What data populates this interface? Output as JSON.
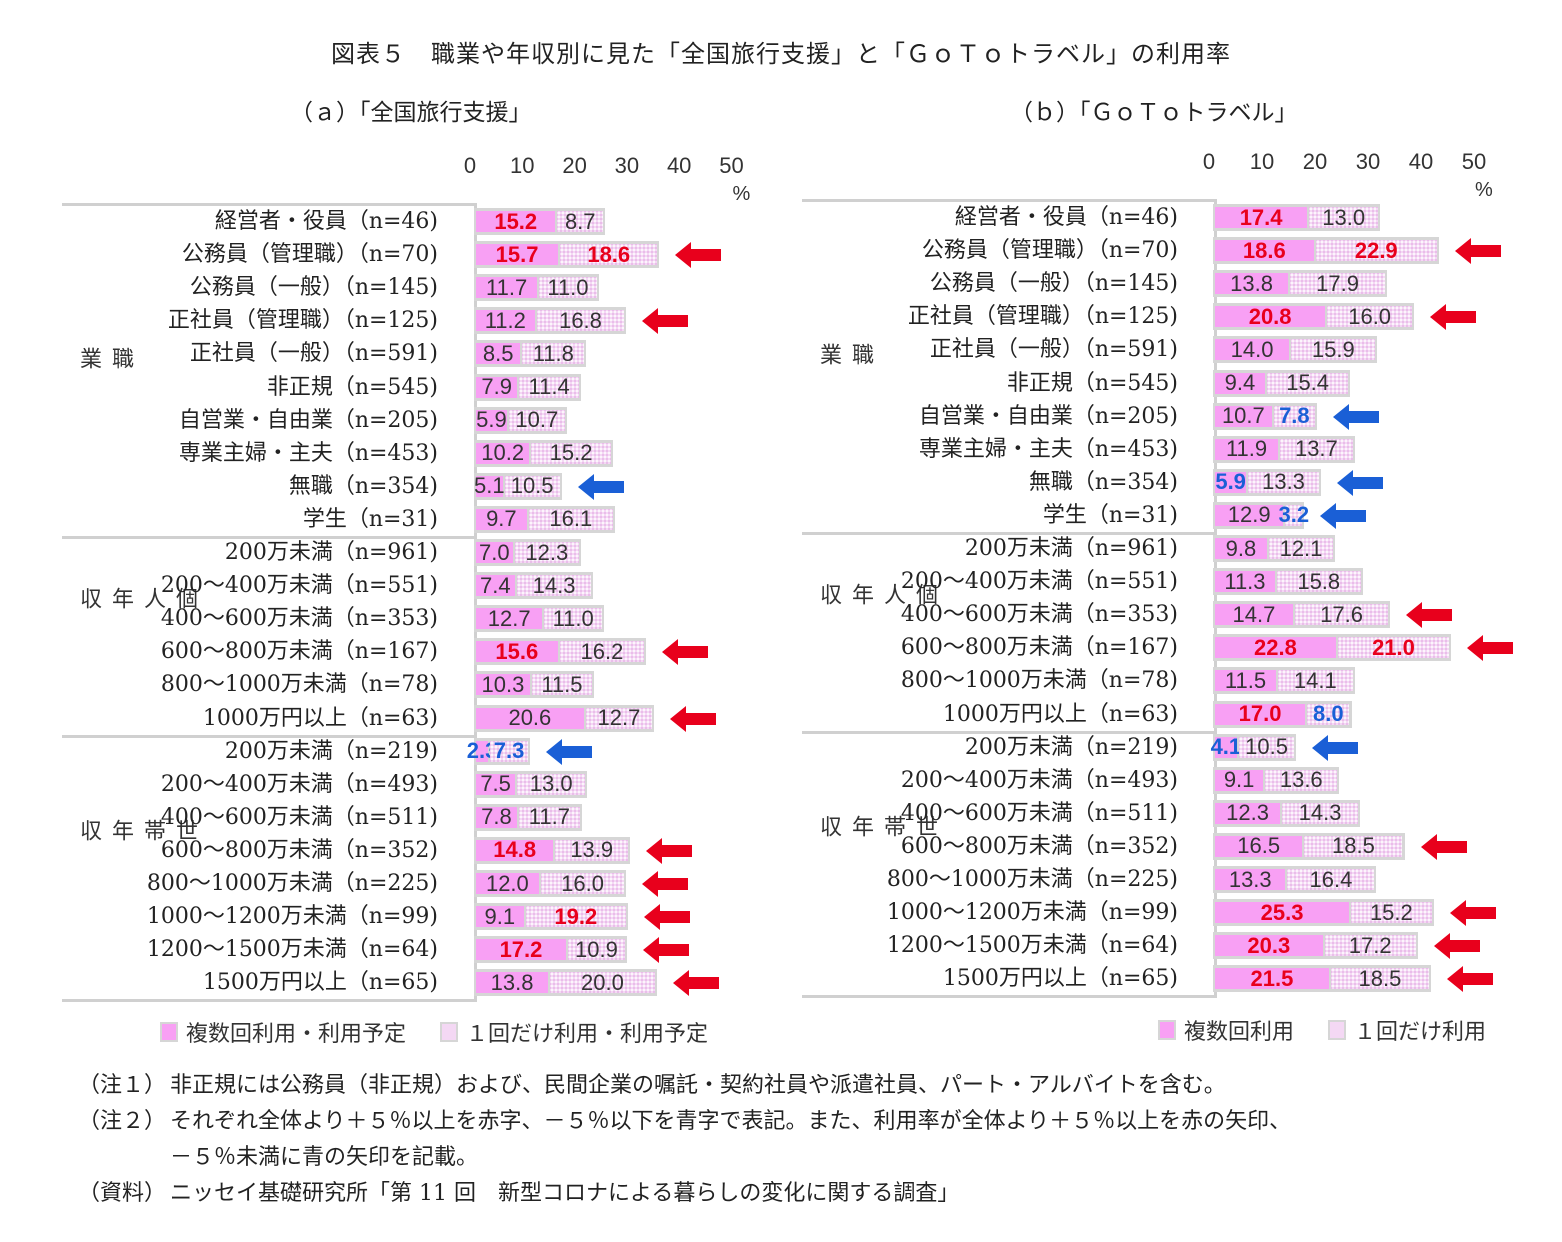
{
  "title": "図表５　職業や年収別に見た「全国旅行支援」と「ＧｏＴｏトラベル」の利用率",
  "colors": {
    "multi": "#f8a0f4",
    "once": "#f4d8f4",
    "red": "#e8001c",
    "blue": "#1a5fd6",
    "frame": "#d0d0d0"
  },
  "panels": [
    {
      "subtitle": "（ａ）「全国旅行支援」",
      "legend": {
        "multi": "複数回利用・利用予定",
        "once": "１回だけ利用・利用予定"
      }
    },
    {
      "subtitle": "（ｂ）「ＧｏＴｏトラベル」",
      "legend": {
        "multi": "複数回利用",
        "once": "１回だけ利用"
      }
    }
  ],
  "axis": {
    "ticks": [
      "0",
      "10",
      "20",
      "30",
      "40",
      "50"
    ],
    "unit": "%"
  },
  "chart_data": [
    {
      "type": "bar",
      "stacked": true,
      "orientation": "horizontal",
      "title": "（ａ）「全国旅行支援」",
      "xlim": [
        0,
        50
      ],
      "xlabel": "%",
      "groups": [
        "職業",
        "個人年収",
        "世帯年収"
      ],
      "categories": [
        "経営者・役員（n=46)",
        "公務員（管理職）（n=70)",
        "公務員（一般）（n=145)",
        "正社員（管理職）（n=125)",
        "正社員（一般）（n=591)",
        "非正規（n=545)",
        "自営業・自由業（n=205)",
        "専業主婦・主夫（n=453)",
        "無職（n=354)",
        "学生（n=31)",
        "200万未満（n=961)",
        "200～400万未満（n=551)",
        "400～600万未満（n=353)",
        "600～800万未満（n=167)",
        "800～1000万未満（n=78)",
        "1000万円以上（n=63)",
        "200万未満（n=219)",
        "200～400万未満（n=493)",
        "400～600万未満（n=511)",
        "600～800万未満（n=352)",
        "800～1000万未満（n=225)",
        "1000～1200万未満（n=99)",
        "1200～1500万未満（n=64)",
        "1500万円以上（n=65)"
      ],
      "series": [
        {
          "name": "複数回利用・利用予定",
          "values": [
            15.2,
            15.7,
            11.7,
            11.2,
            8.5,
            7.9,
            5.9,
            10.2,
            5.1,
            9.7,
            7.0,
            7.4,
            12.7,
            15.6,
            10.3,
            20.6,
            2.3,
            7.5,
            7.8,
            14.8,
            12.0,
            9.1,
            17.2,
            13.8
          ]
        },
        {
          "name": "１回だけ利用・利用予定",
          "values": [
            8.7,
            18.6,
            11.0,
            16.8,
            11.8,
            11.4,
            10.7,
            15.2,
            10.5,
            16.1,
            12.3,
            14.3,
            11.0,
            16.2,
            11.5,
            12.7,
            7.3,
            13.0,
            11.7,
            13.9,
            16.0,
            19.2,
            10.9,
            20.0
          ]
        }
      ],
      "legend_position": "bottom"
    },
    {
      "type": "bar",
      "stacked": true,
      "orientation": "horizontal",
      "title": "（ｂ）「ＧｏＴｏトラベル」",
      "xlim": [
        0,
        50
      ],
      "xlabel": "%",
      "groups": [
        "職業",
        "個人年収",
        "世帯年収"
      ],
      "categories": [
        "経営者・役員（n=46)",
        "公務員（管理職）（n=70)",
        "公務員（一般）（n=145)",
        "正社員（管理職）（n=125)",
        "正社員（一般）（n=591)",
        "非正規（n=545)",
        "自営業・自由業（n=205)",
        "専業主婦・主夫（n=453)",
        "無職（n=354)",
        "学生（n=31)",
        "200万未満（n=961)",
        "200～400万未満（n=551)",
        "400～600万未満（n=353)",
        "600～800万未満（n=167)",
        "800～1000万未満（n=78)",
        "1000万円以上（n=63)",
        "200万未満（n=219)",
        "200～400万未満（n=493)",
        "400～600万未満（n=511)",
        "600～800万未満（n=352)",
        "800～1000万未満（n=225)",
        "1000～1200万未満（n=99)",
        "1200～1500万未満（n=64)",
        "1500万円以上（n=65)"
      ],
      "series": [
        {
          "name": "複数回利用",
          "values": [
            17.4,
            18.6,
            13.8,
            20.8,
            14.0,
            9.4,
            10.7,
            11.9,
            5.9,
            12.9,
            9.8,
            11.3,
            14.7,
            22.8,
            11.5,
            17.0,
            4.1,
            9.1,
            12.3,
            16.5,
            13.3,
            25.3,
            20.3,
            21.5
          ]
        },
        {
          "name": "１回だけ利用",
          "values": [
            13.0,
            22.9,
            17.9,
            16.0,
            15.9,
            15.4,
            7.8,
            13.7,
            13.3,
            3.2,
            12.1,
            15.8,
            17.6,
            21.0,
            14.1,
            8.0,
            10.5,
            13.6,
            14.3,
            18.5,
            16.4,
            15.2,
            17.2,
            18.5
          ]
        }
      ],
      "legend_position": "bottom"
    }
  ],
  "rows": {
    "a": [
      {
        "label": "経営者・役員（n=46)",
        "m": 15.2,
        "o": 8.7,
        "mc": "red",
        "oc": "",
        "arrow": ""
      },
      {
        "label": "公務員（管理職）（n=70)",
        "m": 15.7,
        "o": 18.6,
        "mc": "red",
        "oc": "red",
        "arrow": "red"
      },
      {
        "label": "公務員（一般）（n=145)",
        "m": 11.7,
        "o": 11.0,
        "mc": "",
        "oc": "",
        "arrow": ""
      },
      {
        "label": "正社員（管理職）（n=125)",
        "m": 11.2,
        "o": 16.8,
        "mc": "",
        "oc": "",
        "arrow": "red"
      },
      {
        "label": "正社員（一般）（n=591)",
        "m": 8.5,
        "o": 11.8,
        "mc": "",
        "oc": "",
        "arrow": ""
      },
      {
        "label": "非正規（n=545)",
        "m": 7.9,
        "o": 11.4,
        "mc": "",
        "oc": "",
        "arrow": ""
      },
      {
        "label": "自営業・自由業（n=205)",
        "m": 5.9,
        "o": 10.7,
        "mc": "",
        "oc": "",
        "arrow": ""
      },
      {
        "label": "専業主婦・主夫（n=453)",
        "m": 10.2,
        "o": 15.2,
        "mc": "",
        "oc": "",
        "arrow": ""
      },
      {
        "label": "無職（n=354)",
        "m": 5.1,
        "o": 10.5,
        "mc": "",
        "oc": "",
        "arrow": "blue"
      },
      {
        "label": "学生（n=31)",
        "m": 9.7,
        "o": 16.1,
        "mc": "",
        "oc": "",
        "arrow": ""
      },
      {
        "label": "200万未満（n=961)",
        "m": 7.0,
        "o": 12.3,
        "mc": "",
        "oc": "",
        "arrow": ""
      },
      {
        "label": "200～400万未満（n=551)",
        "m": 7.4,
        "o": 14.3,
        "mc": "",
        "oc": "",
        "arrow": ""
      },
      {
        "label": "400～600万未満（n=353)",
        "m": 12.7,
        "o": 11.0,
        "mc": "",
        "oc": "",
        "arrow": ""
      },
      {
        "label": "600～800万未満（n=167)",
        "m": 15.6,
        "o": 16.2,
        "mc": "red",
        "oc": "",
        "arrow": "red"
      },
      {
        "label": "800～1000万未満（n=78)",
        "m": 10.3,
        "o": 11.5,
        "mc": "",
        "oc": "",
        "arrow": ""
      },
      {
        "label": "1000万円以上（n=63)",
        "m": 20.6,
        "o": 12.7,
        "mc": "",
        "oc": "",
        "arrow": "red"
      },
      {
        "label": "200万未満（n=219)",
        "m": 2.3,
        "o": 7.3,
        "mc": "blue",
        "oc": "blue",
        "arrow": "blue"
      },
      {
        "label": "200～400万未満（n=493)",
        "m": 7.5,
        "o": 13.0,
        "mc": "",
        "oc": "",
        "arrow": ""
      },
      {
        "label": "400～600万未満（n=511)",
        "m": 7.8,
        "o": 11.7,
        "mc": "",
        "oc": "",
        "arrow": ""
      },
      {
        "label": "600～800万未満（n=352)",
        "m": 14.8,
        "o": 13.9,
        "mc": "red",
        "oc": "",
        "arrow": "red"
      },
      {
        "label": "800～1000万未満（n=225)",
        "m": 12.0,
        "o": 16.0,
        "mc": "",
        "oc": "",
        "arrow": "red"
      },
      {
        "label": "1000～1200万未満（n=99)",
        "m": 9.1,
        "o": 19.2,
        "mc": "",
        "oc": "red",
        "arrow": "red"
      },
      {
        "label": "1200～1500万未満（n=64)",
        "m": 17.2,
        "o": 10.9,
        "mc": "red",
        "oc": "",
        "arrow": "red"
      },
      {
        "label": "1500万円以上（n=65)",
        "m": 13.8,
        "o": 20.0,
        "mc": "",
        "oc": "",
        "arrow": "red"
      }
    ],
    "b": [
      {
        "label": "経営者・役員（n=46)",
        "m": 17.4,
        "o": 13.0,
        "mc": "red",
        "oc": "",
        "arrow": ""
      },
      {
        "label": "公務員（管理職）（n=70)",
        "m": 18.6,
        "o": 22.9,
        "mc": "red",
        "oc": "red",
        "arrow": "red"
      },
      {
        "label": "公務員（一般）（n=145)",
        "m": 13.8,
        "o": 17.9,
        "mc": "",
        "oc": "",
        "arrow": ""
      },
      {
        "label": "正社員（管理職）（n=125)",
        "m": 20.8,
        "o": 16.0,
        "mc": "red",
        "oc": "",
        "arrow": "red"
      },
      {
        "label": "正社員（一般）（n=591)",
        "m": 14.0,
        "o": 15.9,
        "mc": "",
        "oc": "",
        "arrow": ""
      },
      {
        "label": "非正規（n=545)",
        "m": 9.4,
        "o": 15.4,
        "mc": "",
        "oc": "",
        "arrow": ""
      },
      {
        "label": "自営業・自由業（n=205)",
        "m": 10.7,
        "o": 7.8,
        "mc": "",
        "oc": "blue",
        "arrow": "blue"
      },
      {
        "label": "専業主婦・主夫（n=453)",
        "m": 11.9,
        "o": 13.7,
        "mc": "",
        "oc": "",
        "arrow": ""
      },
      {
        "label": "無職（n=354)",
        "m": 5.9,
        "o": 13.3,
        "mc": "blue",
        "oc": "",
        "arrow": "blue"
      },
      {
        "label": "学生（n=31)",
        "m": 12.9,
        "o": 3.2,
        "mc": "",
        "oc": "blue",
        "arrow": "blue"
      },
      {
        "label": "200万未満（n=961)",
        "m": 9.8,
        "o": 12.1,
        "mc": "",
        "oc": "",
        "arrow": ""
      },
      {
        "label": "200～400万未満（n=551)",
        "m": 11.3,
        "o": 15.8,
        "mc": "",
        "oc": "",
        "arrow": ""
      },
      {
        "label": "400～600万未満（n=353)",
        "m": 14.7,
        "o": 17.6,
        "mc": "",
        "oc": "",
        "arrow": "red"
      },
      {
        "label": "600～800万未満（n=167)",
        "m": 22.8,
        "o": 21.0,
        "mc": "red",
        "oc": "red",
        "arrow": "red"
      },
      {
        "label": "800～1000万未満（n=78)",
        "m": 11.5,
        "o": 14.1,
        "mc": "",
        "oc": "",
        "arrow": ""
      },
      {
        "label": "1000万円以上（n=63)",
        "m": 17.0,
        "o": 8.0,
        "mc": "red",
        "oc": "blue",
        "arrow": ""
      },
      {
        "label": "200万未満（n=219)",
        "m": 4.1,
        "o": 10.5,
        "mc": "blue",
        "oc": "",
        "arrow": "blue"
      },
      {
        "label": "200～400万未満（n=493)",
        "m": 9.1,
        "o": 13.6,
        "mc": "",
        "oc": "",
        "arrow": ""
      },
      {
        "label": "400～600万未満（n=511)",
        "m": 12.3,
        "o": 14.3,
        "mc": "",
        "oc": "",
        "arrow": ""
      },
      {
        "label": "600～800万未満（n=352)",
        "m": 16.5,
        "o": 18.5,
        "mc": "",
        "oc": "",
        "arrow": "red"
      },
      {
        "label": "800～1000万未満（n=225)",
        "m": 13.3,
        "o": 16.4,
        "mc": "",
        "oc": "",
        "arrow": ""
      },
      {
        "label": "1000～1200万未満（n=99)",
        "m": 25.3,
        "o": 15.2,
        "mc": "red",
        "oc": "",
        "arrow": "red"
      },
      {
        "label": "1200～1500万未満（n=64)",
        "m": 20.3,
        "o": 17.2,
        "mc": "red",
        "oc": "",
        "arrow": "red"
      },
      {
        "label": "1500万円以上（n=65)",
        "m": 21.5,
        "o": 18.5,
        "mc": "red",
        "oc": "",
        "arrow": "red"
      }
    ]
  },
  "groups": [
    {
      "label": "職業",
      "start": 0,
      "count": 10
    },
    {
      "label": "個人年収",
      "start": 10,
      "count": 6
    },
    {
      "label": "世帯年収",
      "start": 16,
      "count": 8
    }
  ],
  "notes": [
    {
      "key": "（注１）",
      "text": "非正規には公務員（非正規）および、民間企業の嘱託・契約社員や派遣社員、パート・アルバイトを含む。"
    },
    {
      "key": "（注２）",
      "text": "それぞれ全体より＋５％以上を赤字、－５％以下を青字で表記。また、利用率が全体より＋５％以上を赤の矢印、"
    },
    {
      "key": "",
      "text": "－５％未満に青の矢印を記載。"
    },
    {
      "key": "（資料）",
      "text": "ニッセイ基礎研究所「第 11 回　新型コロナによる暮らしの変化に関する調査」"
    }
  ]
}
